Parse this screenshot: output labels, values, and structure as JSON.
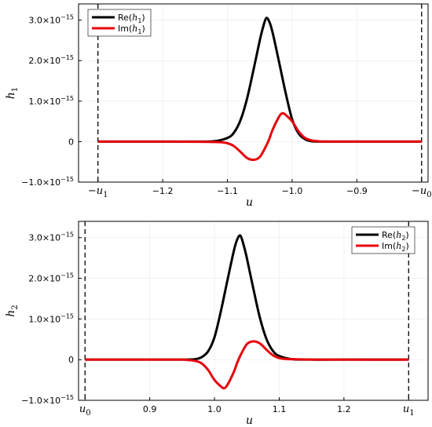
{
  "chart_data": [
    {
      "type": "line",
      "xlabel": "u",
      "ylabel": "h",
      "ylabel_sub": "1",
      "xlim": [
        -1.33,
        -0.79
      ],
      "ylim": [
        -1.0,
        3.4
      ],
      "y_exponent_label": "×10",
      "y_exponent": "−15",
      "yticks": [
        {
          "value": -1,
          "label": "−1.0"
        },
        {
          "value": 0,
          "label": "0"
        },
        {
          "value": 1,
          "label": "1.0"
        },
        {
          "value": 2,
          "label": "2.0"
        },
        {
          "value": 3,
          "label": "3.0"
        }
      ],
      "xticks": [
        {
          "value": -1.3,
          "label": "−u",
          "sub": "1"
        },
        {
          "value": -1.2,
          "label": "−1.2"
        },
        {
          "value": -1.1,
          "label": "−1.1"
        },
        {
          "value": -1.0,
          "label": "−1.0"
        },
        {
          "value": -0.9,
          "label": "−0.9"
        },
        {
          "value": -0.8,
          "label": "−u",
          "sub": "0"
        }
      ],
      "vertical_lines": [
        -1.3,
        -0.8
      ],
      "grid": true,
      "legend_position": "top-left",
      "series": [
        {
          "name": "Re(h₁)",
          "legend_prefix": "Re(",
          "legend_var": "h",
          "legend_sub": "1",
          "legend_suffix": ")",
          "color": "#000000",
          "x": [
            -1.3,
            -1.2,
            -1.15,
            -1.12,
            -1.1,
            -1.09,
            -1.08,
            -1.07,
            -1.06,
            -1.05,
            -1.045,
            -1.04,
            -1.035,
            -1.03,
            -1.02,
            -1.01,
            -1.0,
            -0.99,
            -0.98,
            -0.97,
            -0.95,
            -0.9,
            -0.8
          ],
          "y": [
            0,
            0,
            0,
            0.01,
            0.09,
            0.22,
            0.52,
            1.04,
            1.75,
            2.5,
            2.82,
            3.05,
            2.95,
            2.68,
            1.95,
            1.2,
            0.55,
            0.2,
            0.06,
            0.01,
            0,
            0,
            0
          ]
        },
        {
          "name": "Im(h₁)",
          "legend_prefix": "Im(",
          "legend_var": "h",
          "legend_sub": "1",
          "legend_suffix": ")",
          "color": "#e8000b",
          "x": [
            -1.3,
            -1.2,
            -1.12,
            -1.1,
            -1.09,
            -1.08,
            -1.07,
            -1.06,
            -1.05,
            -1.04,
            -1.035,
            -1.03,
            -1.02,
            -1.015,
            -1.01,
            -1.0,
            -0.99,
            -0.98,
            -0.97,
            -0.96,
            -0.95,
            -0.9,
            -0.8
          ],
          "y": [
            0,
            0,
            -0.01,
            -0.04,
            -0.11,
            -0.25,
            -0.4,
            -0.45,
            -0.38,
            -0.1,
            0.08,
            0.3,
            0.62,
            0.7,
            0.66,
            0.5,
            0.25,
            0.09,
            0.03,
            0.01,
            0,
            0,
            0
          ]
        }
      ]
    },
    {
      "type": "line",
      "xlabel": "u",
      "ylabel": "h",
      "ylabel_sub": "2",
      "xlim": [
        0.79,
        1.33
      ],
      "ylim": [
        -1.0,
        3.4
      ],
      "y_exponent_label": "×10",
      "y_exponent": "−15",
      "yticks": [
        {
          "value": -1,
          "label": "−1.0"
        },
        {
          "value": 0,
          "label": "0"
        },
        {
          "value": 1,
          "label": "1.0"
        },
        {
          "value": 2,
          "label": "2.0"
        },
        {
          "value": 3,
          "label": "3.0"
        }
      ],
      "xticks": [
        {
          "value": 0.8,
          "label": "u",
          "sub": "0"
        },
        {
          "value": 0.9,
          "label": "0.9"
        },
        {
          "value": 1.0,
          "label": "1.0"
        },
        {
          "value": 1.1,
          "label": "1.1"
        },
        {
          "value": 1.2,
          "label": "1.2"
        },
        {
          "value": 1.3,
          "label": "u",
          "sub": "1"
        }
      ],
      "vertical_lines": [
        0.8,
        1.3
      ],
      "grid": true,
      "legend_position": "top-right",
      "series": [
        {
          "name": "Re(h₂)",
          "legend_prefix": "Re(",
          "legend_var": "h",
          "legend_sub": "2",
          "legend_suffix": ")",
          "color": "#000000",
          "x": [
            0.8,
            0.9,
            0.95,
            0.97,
            0.98,
            0.99,
            1.0,
            1.01,
            1.02,
            1.03,
            1.035,
            1.04,
            1.045,
            1.05,
            1.06,
            1.07,
            1.08,
            1.09,
            1.1,
            1.12,
            1.15,
            1.2,
            1.3
          ],
          "y": [
            0,
            0,
            0,
            0.01,
            0.06,
            0.2,
            0.55,
            1.2,
            1.95,
            2.68,
            2.95,
            3.05,
            2.82,
            2.5,
            1.75,
            1.04,
            0.52,
            0.22,
            0.09,
            0.01,
            0,
            0,
            0
          ]
        },
        {
          "name": "Im(h₂)",
          "legend_prefix": "Im(",
          "legend_var": "h",
          "legend_sub": "2",
          "legend_suffix": ")",
          "color": "#e8000b",
          "x": [
            0.8,
            0.9,
            0.95,
            0.96,
            0.97,
            0.98,
            0.99,
            1.0,
            1.01,
            1.015,
            1.02,
            1.03,
            1.035,
            1.04,
            1.05,
            1.06,
            1.07,
            1.08,
            1.09,
            1.1,
            1.12,
            1.2,
            1.3
          ],
          "y": [
            0,
            0,
            0,
            -0.01,
            -0.03,
            -0.09,
            -0.25,
            -0.5,
            -0.66,
            -0.7,
            -0.62,
            -0.3,
            -0.08,
            0.1,
            0.38,
            0.45,
            0.4,
            0.25,
            0.11,
            0.04,
            0.01,
            0,
            0
          ]
        }
      ]
    }
  ]
}
